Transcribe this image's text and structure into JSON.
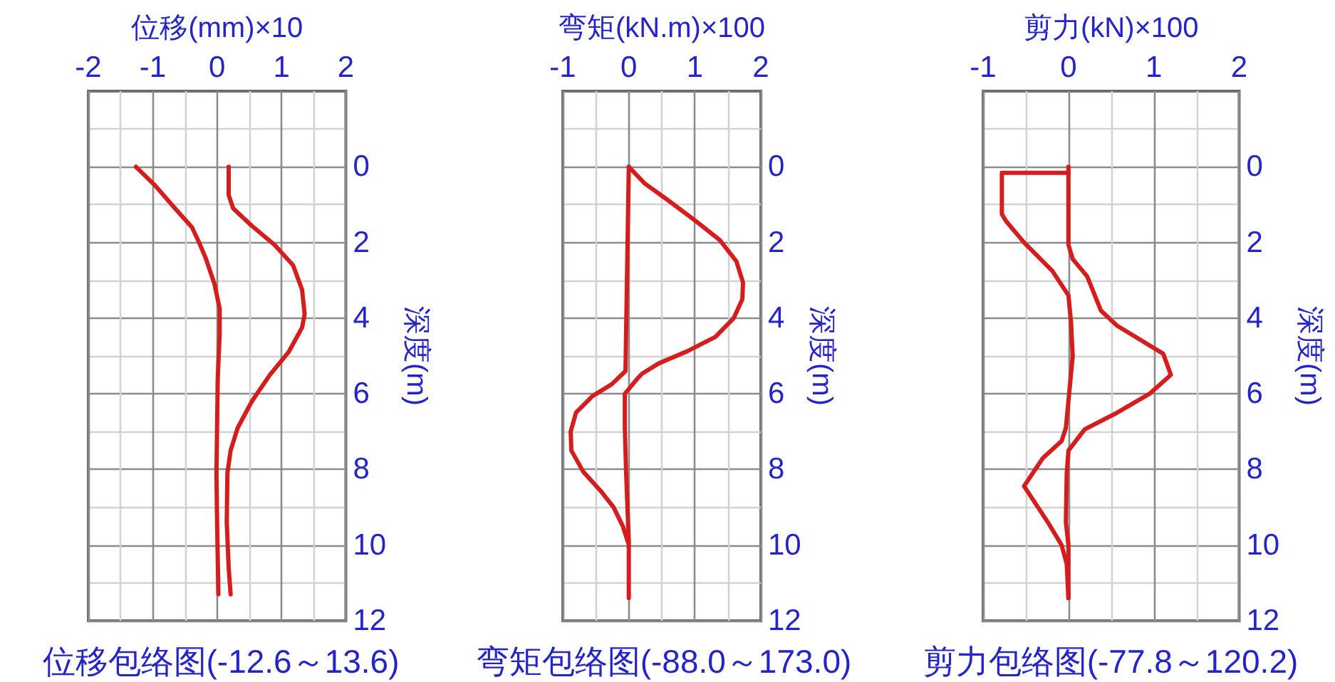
{
  "chart_data": [
    {
      "type": "line",
      "title": "位移包络图(-12.6～13.6)",
      "xlabel": "位移(mm)×10",
      "ylabel": "深度(m)",
      "xlim": [
        -2,
        2
      ],
      "xticks": [
        -2,
        {
          "value": -1.5,
          "label": null
        },
        -1,
        {
          "value": -0.5,
          "label": null
        },
        0,
        {
          "value": 0.5,
          "label": null
        },
        1,
        {
          "value": 1.5,
          "label": null
        },
        2
      ],
      "ylim": [
        12,
        -2
      ],
      "yticks": [
        {
          "value": -1,
          "label": null
        },
        0,
        {
          "value": 1,
          "label": null
        },
        2,
        {
          "value": 3,
          "label": null
        },
        4,
        {
          "value": 5,
          "label": null
        },
        6,
        {
          "value": 7,
          "label": null
        },
        8,
        {
          "value": 9,
          "label": null
        },
        10,
        {
          "value": 11,
          "label": null
        },
        12
      ],
      "grid": true,
      "series": [
        {
          "color": "#d41e1e",
          "x": [
            -1.26,
            -0.96,
            -0.68,
            -0.39,
            -0.28,
            -0.18,
            -0.04,
            0.04,
            0.04,
            0.01,
            -0.01,
            0,
            0.02
          ],
          "values": [
            0,
            0.5,
            1.05,
            1.6,
            2,
            2.4,
            3.1,
            3.75,
            4.4,
            5.6,
            8.1,
            9.4,
            11.3
          ]
        },
        {
          "color": "#d41e1e",
          "x": [
            0.18,
            0.18,
            0.25,
            0.54,
            0.89,
            1.18,
            1.32,
            1.36,
            1.32,
            1.11,
            0.82,
            0.54,
            0.32,
            0.21,
            0.16,
            0.15,
            0.18,
            0.21
          ],
          "values": [
            0,
            0.75,
            1.1,
            1.56,
            2.06,
            2.6,
            3.25,
            3.9,
            4.25,
            4.9,
            5.5,
            6.2,
            6.9,
            7.5,
            8.1,
            9.4,
            10.6,
            11.3
          ]
        }
      ]
    },
    {
      "type": "line",
      "title": "弯矩包络图(-88.0～173.0)",
      "xlabel": "弯矩(kN.m)×100",
      "ylabel": "深度(m)",
      "xlim": [
        -1,
        2
      ],
      "xticks": [
        -1,
        {
          "value": -0.5,
          "label": null
        },
        0,
        {
          "value": 0.5,
          "label": null
        },
        1,
        {
          "value": 1.5,
          "label": null
        },
        2
      ],
      "ylim": [
        12,
        -2
      ],
      "yticks": [
        {
          "value": -1,
          "label": null
        },
        0,
        {
          "value": 1,
          "label": null
        },
        2,
        {
          "value": 3,
          "label": null
        },
        4,
        {
          "value": 5,
          "label": null
        },
        6,
        {
          "value": 7,
          "label": null
        },
        8,
        {
          "value": 9,
          "label": null
        },
        10,
        {
          "value": 11,
          "label": null
        },
        12
      ],
      "grid": true,
      "series": [
        {
          "color": "#d41e1e",
          "x": [
            0,
            0.24,
            0.59,
            1.02,
            1.38,
            1.63,
            1.73,
            1.72,
            1.59,
            1.31,
            0.88,
            0.45,
            0.2,
            0.13,
            -0.06,
            -0.06,
            -0.04,
            0,
            0
          ],
          "values": [
            0,
            0.44,
            0.88,
            1.44,
            1.94,
            2.5,
            3.06,
            3.5,
            4,
            4.5,
            4.88,
            5.2,
            5.47,
            5.6,
            6,
            6.9,
            8.1,
            9.9,
            11.4
          ]
        },
        {
          "color": "#d41e1e",
          "x": [
            0,
            -0.05,
            -0.26,
            -0.55,
            -0.8,
            -0.88,
            -0.87,
            -0.69,
            -0.41,
            -0.23,
            -0.09,
            -0.01
          ],
          "values": [
            0,
            5.4,
            5.75,
            6.06,
            6.5,
            7,
            7.5,
            8.06,
            8.6,
            9,
            9.5,
            9.94
          ]
        }
      ]
    },
    {
      "type": "line",
      "title": "剪力包络图(-77.8～120.2)",
      "xlabel": "剪力(kN)×100",
      "ylabel": "深度(m)",
      "xlim": [
        -1,
        2
      ],
      "xticks": [
        -1,
        {
          "value": -0.5,
          "label": null
        },
        0,
        {
          "value": 0.5,
          "label": null
        },
        1,
        {
          "value": 1.5,
          "label": null
        },
        2
      ],
      "ylim": [
        12,
        -2
      ],
      "yticks": [
        {
          "value": -1,
          "label": null
        },
        0,
        {
          "value": 1,
          "label": null
        },
        2,
        {
          "value": 3,
          "label": null
        },
        4,
        {
          "value": 5,
          "label": null
        },
        6,
        {
          "value": 7,
          "label": null
        },
        8,
        {
          "value": 9,
          "label": null
        },
        10,
        {
          "value": 11,
          "label": null
        },
        12
      ],
      "grid": true,
      "series": [
        {
          "color": "#d41e1e",
          "x": [
            0,
            0,
            0.05,
            0.22,
            0.38,
            0.57,
            1.11,
            1.2,
            0.95,
            0.57,
            0.19,
            0,
            -0.02,
            -0.03,
            0,
            0
          ],
          "values": [
            0,
            2.06,
            2.44,
            2.9,
            3.8,
            4.2,
            4.94,
            5.5,
            6,
            6.5,
            6.94,
            7.5,
            8.1,
            9.4,
            10,
            11.4
          ]
        },
        {
          "color": "#d41e1e",
          "x": [
            0,
            -0.78,
            -0.78,
            -0.73,
            -0.52,
            -0.19,
            0,
            0.03,
            0.05,
            -0.03,
            -0.08,
            -0.3,
            -0.52,
            -0.24,
            -0.08,
            -0.02,
            0
          ],
          "values": [
            0.16,
            0.16,
            1.25,
            1.44,
            2,
            2.75,
            3.4,
            4.1,
            5,
            6.9,
            7.25,
            7.7,
            8.44,
            9.4,
            10,
            10.5,
            11.4
          ]
        }
      ]
    }
  ]
}
